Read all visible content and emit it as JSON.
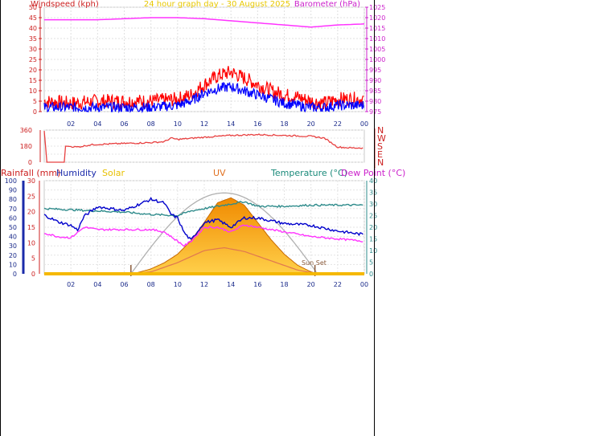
{
  "chart_data": [
    {
      "type": "line",
      "title": "24 hour graph day - 30 August  2025",
      "ylabel": "Windspeed (kph)",
      "y2label": "Barometer (hPa)",
      "x_ticks": [
        "02",
        "04",
        "06",
        "08",
        "10",
        "12",
        "14",
        "16",
        "18",
        "20",
        "22",
        "00"
      ],
      "ylim": [
        0,
        50
      ],
      "y_ticks": [
        0,
        5,
        10,
        15,
        20,
        25,
        30,
        35,
        40,
        45,
        50
      ],
      "y2lim": [
        975,
        1025
      ],
      "y2_ticks": [
        975,
        980,
        985,
        990,
        995,
        1000,
        1005,
        1010,
        1015,
        1020,
        1025
      ],
      "grid": true,
      "series": [
        {
          "color": "#ff0000",
          "hours": [
            0,
            2,
            4,
            6,
            8,
            10,
            11,
            12,
            13,
            14,
            15,
            16,
            17,
            18,
            19,
            20,
            21,
            22,
            23,
            24
          ],
          "values": [
            5,
            4,
            5,
            5,
            5,
            6,
            8,
            13,
            17,
            19,
            16,
            13,
            10,
            8,
            7,
            5,
            4,
            6,
            6,
            6
          ]
        },
        {
          "color": "#0000ff",
          "hours": [
            0,
            2,
            4,
            6,
            8,
            10,
            11,
            12,
            13,
            14,
            15,
            16,
            17,
            18,
            19,
            20,
            21,
            22,
            23,
            24
          ],
          "values": [
            2,
            2,
            2,
            2,
            2,
            3,
            5,
            9,
            11,
            12,
            10,
            8,
            6,
            4,
            3,
            2,
            2,
            3,
            3,
            3
          ]
        },
        {
          "color": "#ff33ff",
          "axis": "y2",
          "hours": [
            0,
            2,
            4,
            6,
            8,
            10,
            12,
            14,
            16,
            18,
            20,
            22,
            24
          ],
          "values": [
            1019,
            1019,
            1019,
            1019.5,
            1020,
            1020,
            1019.5,
            1018.5,
            1017.5,
            1016.5,
            1015.5,
            1016.5,
            1017
          ]
        }
      ]
    },
    {
      "type": "line",
      "ylabel": "",
      "y_ticks": [
        0,
        90,
        180,
        270,
        360
      ],
      "ylim": [
        0,
        360
      ],
      "compass_labels": [
        "N",
        "W",
        "S",
        "E",
        "N"
      ],
      "x_ticks": [],
      "series": [
        {
          "color": "#e84040",
          "hours": [
            0,
            0.2,
            1.5,
            1.6,
            2.5,
            3.5,
            4,
            5,
            6,
            7,
            8,
            9,
            9.5,
            10,
            12,
            14,
            16,
            18,
            20,
            21,
            22,
            23,
            24
          ],
          "values": [
            350,
            0,
            0,
            180,
            170,
            195,
            200,
            205,
            210,
            215,
            220,
            230,
            270,
            255,
            280,
            300,
            310,
            300,
            290,
            270,
            170,
            160,
            160
          ]
        }
      ]
    },
    {
      "type": "line",
      "series_labels": [
        "Rainfall (mm)",
        "Humidity",
        "Solar",
        "UV",
        "Temperature (°C)",
        "Dew Point (°C)"
      ],
      "annotation": "Sun Set",
      "x_ticks": [
        "02",
        "04",
        "06",
        "08",
        "10",
        "12",
        "14",
        "16",
        "18",
        "20",
        "22",
        "00"
      ],
      "humidity_ticks": [
        0,
        10,
        20,
        30,
        40,
        50,
        60,
        70,
        80,
        90,
        100
      ],
      "rain_ticks": [
        0,
        5,
        10,
        15,
        20,
        25,
        30
      ],
      "temp_ticks": [
        0,
        5,
        10,
        15,
        20,
        25,
        30,
        35,
        40
      ],
      "series": [
        {
          "name": "Temperature (°C)",
          "color": "#2e8b8b",
          "hours": [
            0,
            2,
            4,
            6,
            8,
            10,
            11,
            12,
            14,
            15,
            16,
            18,
            20,
            22,
            24
          ],
          "values": [
            28,
            27.5,
            27,
            26.5,
            25.5,
            25,
            27,
            28,
            30,
            31,
            29,
            29,
            29.5,
            29.5,
            29.5
          ]
        },
        {
          "name": "Humidity",
          "color": "#0000cc",
          "hours": [
            0,
            1,
            2,
            2.5,
            3,
            4,
            5,
            6,
            7,
            8,
            9,
            9.5,
            10,
            10.5,
            11,
            12,
            13,
            14,
            15,
            16,
            18,
            20,
            22,
            24
          ],
          "values": [
            63,
            56,
            52,
            47,
            62,
            72,
            70,
            68,
            74,
            80,
            76,
            64,
            60,
            44,
            36,
            55,
            58,
            50,
            60,
            60,
            54,
            52,
            46,
            42
          ]
        },
        {
          "name": "Dew Point (°C)",
          "color": "#ff33ff",
          "hours": [
            0,
            1,
            2,
            3,
            4,
            6,
            8,
            9,
            10,
            10.5,
            11,
            12,
            13,
            14,
            15,
            16,
            18,
            20,
            22,
            24
          ],
          "values": [
            17.5,
            16,
            15.5,
            20,
            19,
            19,
            19,
            18,
            14,
            12,
            14,
            20,
            20,
            18,
            21,
            20,
            18,
            16,
            15,
            14
          ]
        },
        {
          "name": "Solar",
          "color": "#ffa200",
          "hours": [
            6.5,
            7,
            8,
            9,
            10,
            11,
            12,
            13,
            14,
            15,
            16,
            17,
            18,
            19,
            20,
            20.5
          ],
          "values": [
            0,
            5,
            20,
            45,
            80,
            135,
            210,
            290,
            310,
            280,
            210,
            140,
            80,
            35,
            8,
            0
          ]
        },
        {
          "name": "UV",
          "color": "#e07850",
          "hours": [
            6.5,
            8,
            10,
            12,
            13.5,
            15,
            17,
            19,
            20.5
          ],
          "values": [
            0,
            2,
            12,
            25,
            28,
            24,
            14,
            4,
            0
          ]
        }
      ]
    }
  ]
}
